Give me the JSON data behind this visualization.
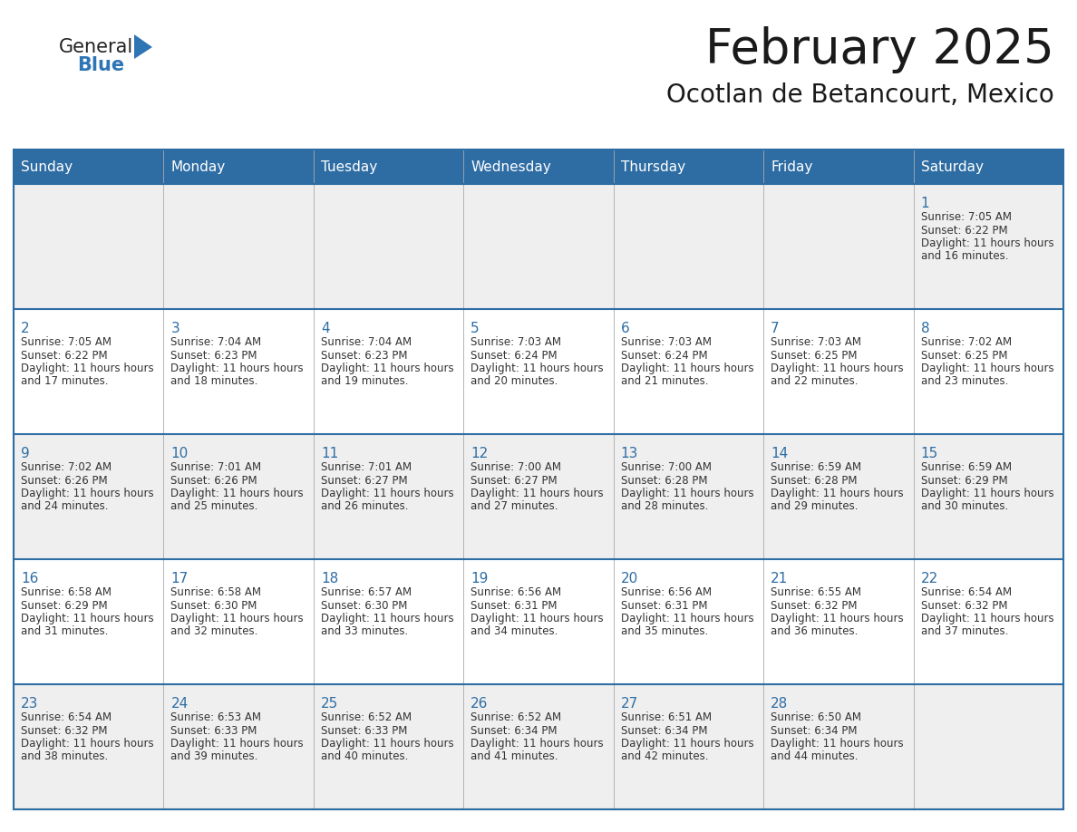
{
  "title": "February 2025",
  "subtitle": "Ocotlan de Betancourt, Mexico",
  "header_bg": "#2E6DA4",
  "header_text_color": "#FFFFFF",
  "day_names": [
    "Sunday",
    "Monday",
    "Tuesday",
    "Wednesday",
    "Thursday",
    "Friday",
    "Saturday"
  ],
  "cell_bg_even": "#EFEFEF",
  "cell_bg_odd": "#FFFFFF",
  "line_color": "#2E6DA4",
  "date_color": "#2E6DA4",
  "text_color": "#333333",
  "logo_general_color": "#222222",
  "logo_blue_color": "#2E75B6",
  "calendar": [
    [
      null,
      null,
      null,
      null,
      null,
      null,
      1
    ],
    [
      2,
      3,
      4,
      5,
      6,
      7,
      8
    ],
    [
      9,
      10,
      11,
      12,
      13,
      14,
      15
    ],
    [
      16,
      17,
      18,
      19,
      20,
      21,
      22
    ],
    [
      23,
      24,
      25,
      26,
      27,
      28,
      null
    ]
  ],
  "sunrise": {
    "1": "7:05 AM",
    "2": "7:05 AM",
    "3": "7:04 AM",
    "4": "7:04 AM",
    "5": "7:03 AM",
    "6": "7:03 AM",
    "7": "7:03 AM",
    "8": "7:02 AM",
    "9": "7:02 AM",
    "10": "7:01 AM",
    "11": "7:01 AM",
    "12": "7:00 AM",
    "13": "7:00 AM",
    "14": "6:59 AM",
    "15": "6:59 AM",
    "16": "6:58 AM",
    "17": "6:58 AM",
    "18": "6:57 AM",
    "19": "6:56 AM",
    "20": "6:56 AM",
    "21": "6:55 AM",
    "22": "6:54 AM",
    "23": "6:54 AM",
    "24": "6:53 AM",
    "25": "6:52 AM",
    "26": "6:52 AM",
    "27": "6:51 AM",
    "28": "6:50 AM"
  },
  "sunset": {
    "1": "6:22 PM",
    "2": "6:22 PM",
    "3": "6:23 PM",
    "4": "6:23 PM",
    "5": "6:24 PM",
    "6": "6:24 PM",
    "7": "6:25 PM",
    "8": "6:25 PM",
    "9": "6:26 PM",
    "10": "6:26 PM",
    "11": "6:27 PM",
    "12": "6:27 PM",
    "13": "6:28 PM",
    "14": "6:28 PM",
    "15": "6:29 PM",
    "16": "6:29 PM",
    "17": "6:30 PM",
    "18": "6:30 PM",
    "19": "6:31 PM",
    "20": "6:31 PM",
    "21": "6:32 PM",
    "22": "6:32 PM",
    "23": "6:32 PM",
    "24": "6:33 PM",
    "25": "6:33 PM",
    "26": "6:34 PM",
    "27": "6:34 PM",
    "28": "6:34 PM"
  },
  "daylight": {
    "1": "11 hours and 16 minutes.",
    "2": "11 hours and 17 minutes.",
    "3": "11 hours and 18 minutes.",
    "4": "11 hours and 19 minutes.",
    "5": "11 hours and 20 minutes.",
    "6": "11 hours and 21 minutes.",
    "7": "11 hours and 22 minutes.",
    "8": "11 hours and 23 minutes.",
    "9": "11 hours and 24 minutes.",
    "10": "11 hours and 25 minutes.",
    "11": "11 hours and 26 minutes.",
    "12": "11 hours and 27 minutes.",
    "13": "11 hours and 28 minutes.",
    "14": "11 hours and 29 minutes.",
    "15": "11 hours and 30 minutes.",
    "16": "11 hours and 31 minutes.",
    "17": "11 hours and 32 minutes.",
    "18": "11 hours and 33 minutes.",
    "19": "11 hours and 34 minutes.",
    "20": "11 hours and 35 minutes.",
    "21": "11 hours and 36 minutes.",
    "22": "11 hours and 37 minutes.",
    "23": "11 hours and 38 minutes.",
    "24": "11 hours and 39 minutes.",
    "25": "11 hours and 40 minutes.",
    "26": "11 hours and 41 minutes.",
    "27": "11 hours and 42 minutes.",
    "28": "11 hours and 44 minutes."
  }
}
